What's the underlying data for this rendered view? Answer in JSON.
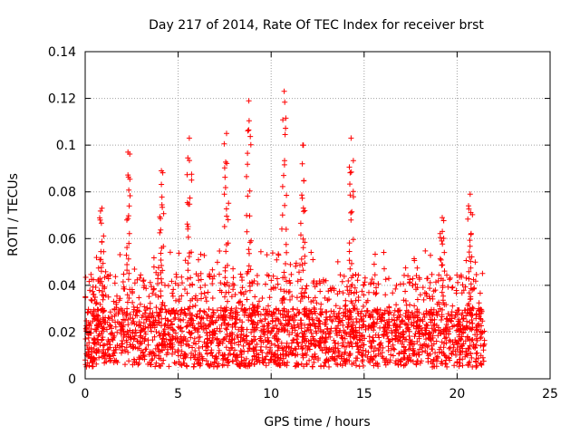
{
  "chart_data": {
    "type": "scatter",
    "title": "Day 217 of 2014, Rate Of TEC Index for receiver brst",
    "xlabel": "GPS time / hours",
    "ylabel": "ROTI / TECUs",
    "xlim": [
      0,
      25
    ],
    "ylim": [
      0,
      0.14
    ],
    "xticks": [
      0,
      5,
      10,
      15,
      20,
      25
    ],
    "yticks": [
      0,
      0.02,
      0.04,
      0.06,
      0.08,
      0.1,
      0.12,
      0.14
    ],
    "xtick_labels": [
      "0",
      "5",
      "10",
      "15",
      "20",
      "25"
    ],
    "ytick_labels": [
      "0",
      "0.02",
      "0.04",
      "0.06",
      "0.08",
      "0.1",
      "0.12",
      "0.14"
    ],
    "grid": true,
    "marker": "+",
    "color": "#ff0000",
    "data_range_hours": [
      0,
      21.5
    ],
    "baseline_band": [
      0.005,
      0.03
    ],
    "peaks": [
      {
        "x": 0.9,
        "y": 0.073
      },
      {
        "x": 2.3,
        "y": 0.097
      },
      {
        "x": 4.1,
        "y": 0.089
      },
      {
        "x": 5.6,
        "y": 0.103
      },
      {
        "x": 7.6,
        "y": 0.105
      },
      {
        "x": 8.8,
        "y": 0.119
      },
      {
        "x": 10.7,
        "y": 0.123
      },
      {
        "x": 11.7,
        "y": 0.1
      },
      {
        "x": 14.3,
        "y": 0.103
      },
      {
        "x": 19.2,
        "y": 0.069
      },
      {
        "x": 20.7,
        "y": 0.079
      }
    ]
  }
}
